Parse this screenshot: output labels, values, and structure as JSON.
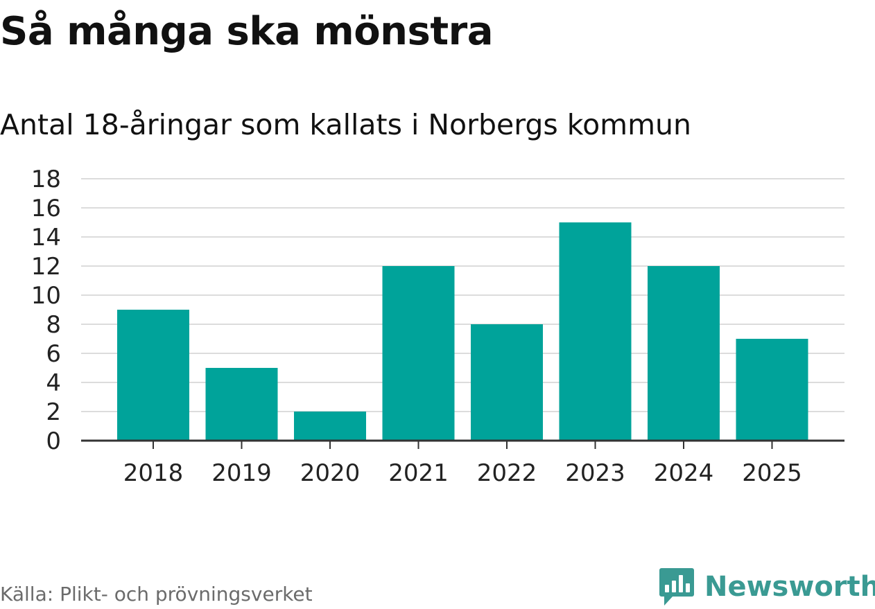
{
  "header": {
    "title": "Så många ska mönstra",
    "subtitle": "Antal 18-åringar som kallats i Norbergs kommun"
  },
  "chart_data": {
    "type": "bar",
    "title": "Så många ska mönstra",
    "subtitle": "Antal 18-åringar som kallats i Norbergs kommun",
    "categories": [
      "2018",
      "2019",
      "2020",
      "2021",
      "2022",
      "2023",
      "2024",
      "2025"
    ],
    "values": [
      9,
      5,
      2,
      12,
      8,
      15,
      12,
      7
    ],
    "xlabel": "",
    "ylabel": "",
    "ylim": [
      0,
      18
    ],
    "yticks": [
      "0",
      "2",
      "4",
      "6",
      "8",
      "10",
      "12",
      "14",
      "16",
      "18"
    ],
    "grid": true,
    "bar_color": "#00a39a"
  },
  "footer": {
    "source": "Källa: Plikt- och prövningsverket",
    "brand": "Newsworthy",
    "brand_color": "#3a9a93",
    "brand_icon": "bar-chart-bubble-icon"
  }
}
